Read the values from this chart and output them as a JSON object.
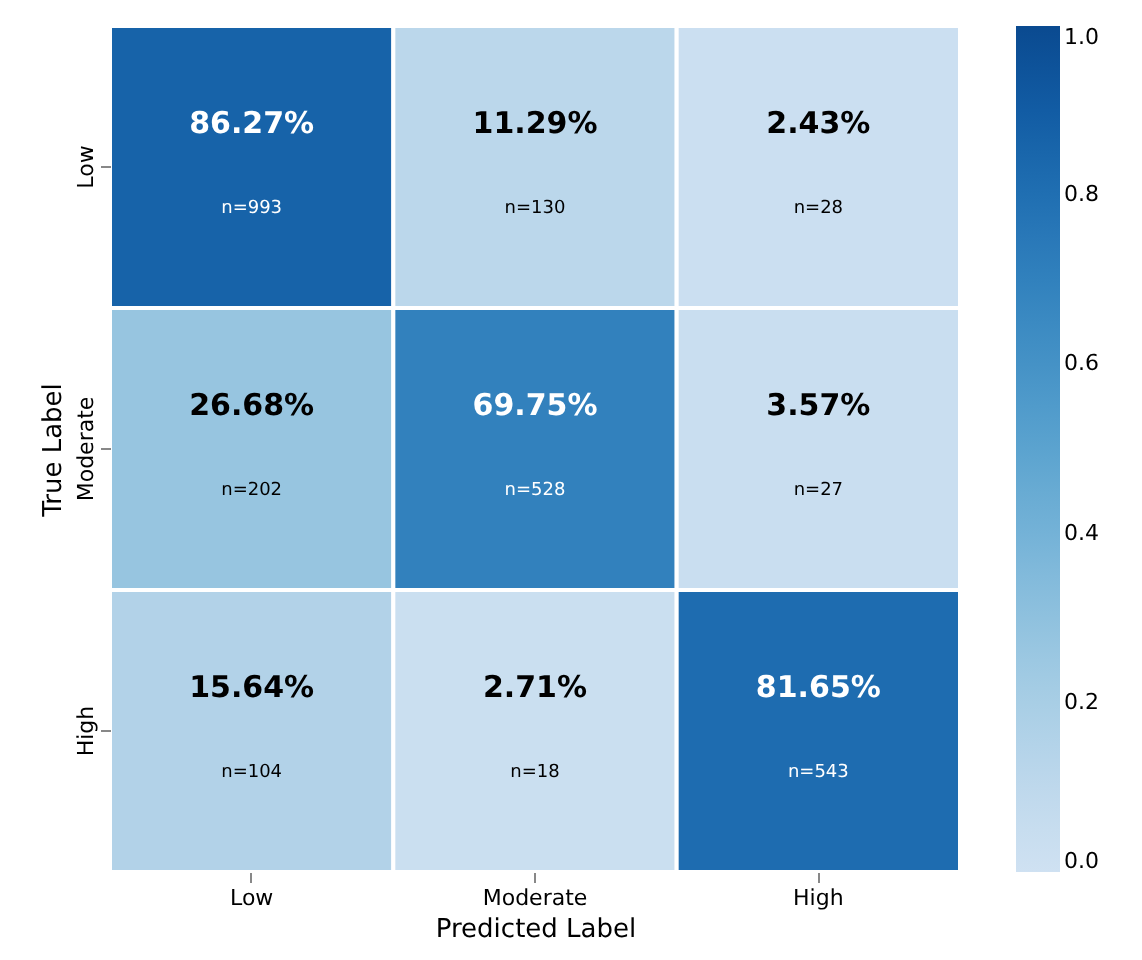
{
  "chart_data": {
    "type": "heatmap",
    "xlabel": "Predicted Label",
    "ylabel": "True Label",
    "categories": [
      "Low",
      "Moderate",
      "High"
    ],
    "y_categories": [
      "Low",
      "Moderate",
      "High"
    ],
    "cells": [
      [
        0.8627,
        0.1129,
        0.0243
      ],
      [
        0.2668,
        0.6975,
        0.0357
      ],
      [
        0.1564,
        0.0271,
        0.8165
      ]
    ],
    "cell_labels": [
      [
        "86.27%\nn=993",
        "11.29%\nn=130",
        "2.43%\nn=28"
      ],
      [
        "26.68%\nn=202",
        "69.75%\nn=528",
        "3.57%\nn=27"
      ],
      [
        "15.64%\nn=104",
        "2.71%\nn=18",
        "81.65%\nn=543"
      ]
    ],
    "clim": [
      0,
      1
    ],
    "cticks": [
      {
        "value": 0,
        "label": "0.0"
      },
      {
        "value": 0.2,
        "label": "0.2"
      },
      {
        "value": 0.4,
        "label": "0.4"
      },
      {
        "value": 0.6,
        "label": "0.6"
      },
      {
        "value": 0.8,
        "label": "0.8"
      },
      {
        "value": 1,
        "label": "1.0"
      }
    ]
  }
}
